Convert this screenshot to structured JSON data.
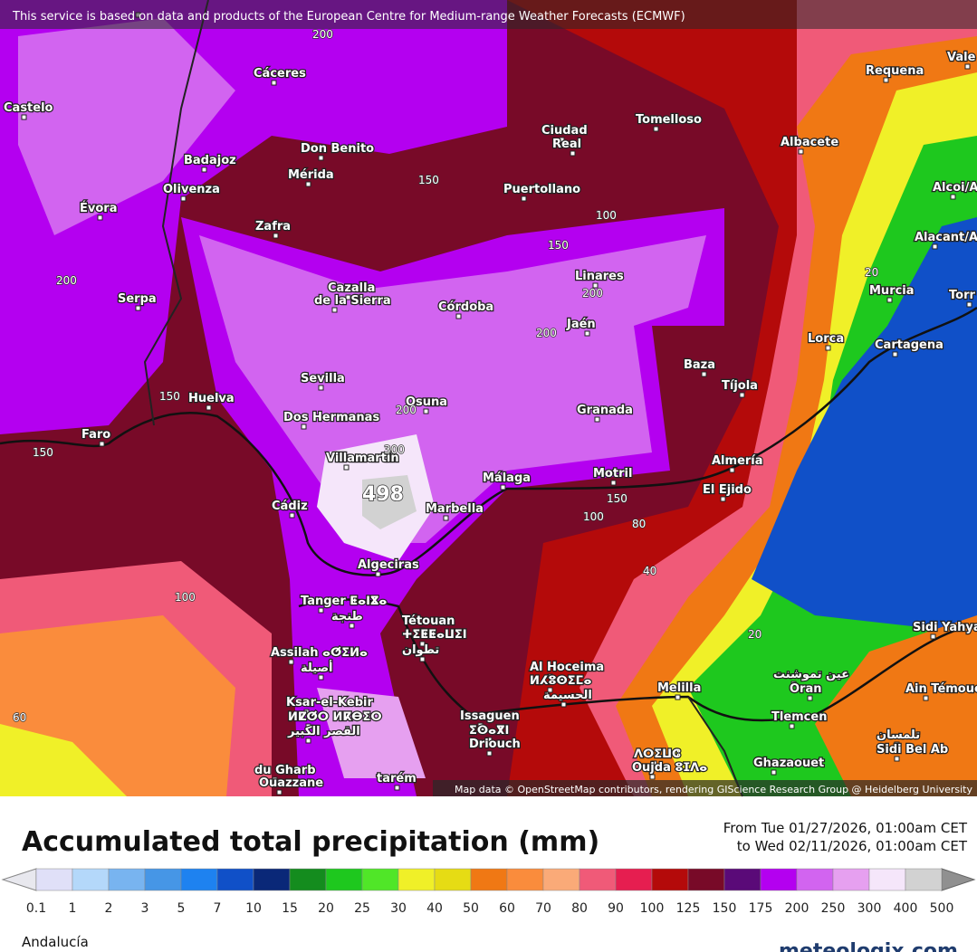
{
  "header": {
    "attribution": "This service is based on data and products of the European Centre for Medium-range Weather Forecasts (ECMWF)"
  },
  "map": {
    "places": [
      "Cáceres",
      "Don Benito",
      "Mérida",
      "Badajoz",
      "Olivenza",
      "Évora",
      "Zafra",
      "Ciudad",
      "Real",
      "Tomelloso",
      "Puertollano",
      "Albacete",
      "Requena",
      "Vale",
      "Alcoi/A",
      "Alacant/A",
      "Murcia",
      "Torr",
      "Cartagena",
      "Lorca",
      "Linares",
      "Jaén",
      "Córdoba",
      "Cazalla",
      "de la Sierra",
      "Serpa",
      "Sevilla",
      "Huelva",
      "Dos Hermanas",
      "Osuna",
      "Granada",
      "Baza",
      "Tíjola",
      "Faro",
      "Almería",
      "El Ejido",
      "Motril",
      "Málaga",
      "Villamartín",
      "Marbella",
      "Cádiz",
      "Algeciras",
      "Tanger ⵟⴰⵏⴵⴰ",
      "طنجة",
      "Tétouan",
      "ⵜⵉⵟⵟⴰⵡⵉⵏ",
      "تطوان",
      "Assilah ⴰⵚⵉⵍⴰ",
      "أصيلة",
      "Ksar-el-Kebir",
      "ⵍⵇⵚⵔ ⵍⴽⴱⵉⵔ",
      "القصر الكبير",
      "Al Hoceima",
      "ⵍⵃⵓⵙⵉⵎⴰ",
      "الحسيمة",
      "Melilla",
      "Issaguen",
      "ⵉⵙⴰⴳⵏ",
      "Driouch",
      "ⴷⵔⵉⵡⵛ",
      "Oujda ⵓⵊⴷⴰ",
      "Ghazaouet",
      "Tlemcen",
      "تلمسان",
      "Sidi Bel Ab",
      "Ain Témouchent",
      "عين تموشنت",
      "Oran",
      "Sidi Yahya",
      "du Gharb",
      "Ouazzane",
      "tarém",
      "Castelo"
    ],
    "contour_labels": [
      200,
      150,
      100,
      150,
      200,
      200,
      200,
      150,
      150,
      200,
      300,
      498,
      150,
      100,
      80,
      40,
      20,
      20,
      100,
      60
    ],
    "credit": "Map data © OpenStreetMap contributors, rendering GIScience Research Group @ Heidelberg University"
  },
  "legend": {
    "title": "Accumulated total precipitation (mm)",
    "period_from": "From Tue 01/27/2026, 01:00am CET",
    "period_to": "to Wed 02/11/2026, 01:00am CET",
    "bounds": [
      0.1,
      1,
      2,
      3,
      5,
      7,
      10,
      15,
      20,
      25,
      30,
      40,
      50,
      60,
      70,
      80,
      90,
      100,
      125,
      150,
      175,
      200,
      250,
      300,
      400,
      500
    ],
    "colors": [
      "#e0e0f8",
      "#b4d8fa",
      "#78b4f0",
      "#4696e6",
      "#1e82f0",
      "#1050c8",
      "#0a2878",
      "#148c1e",
      "#1ec81e",
      "#50e628",
      "#f0f028",
      "#e6dc14",
      "#f07814",
      "#fa8c3c",
      "#faaa78",
      "#f05a78",
      "#e61e50",
      "#b40a0a",
      "#780a28",
      "#5a0a78",
      "#b400f0",
      "#d264f0",
      "#e6a0f0",
      "#f5e6fa",
      "#d2d2d2"
    ]
  },
  "footer": {
    "region": "Andalucía",
    "brand": "meteologix.com"
  }
}
